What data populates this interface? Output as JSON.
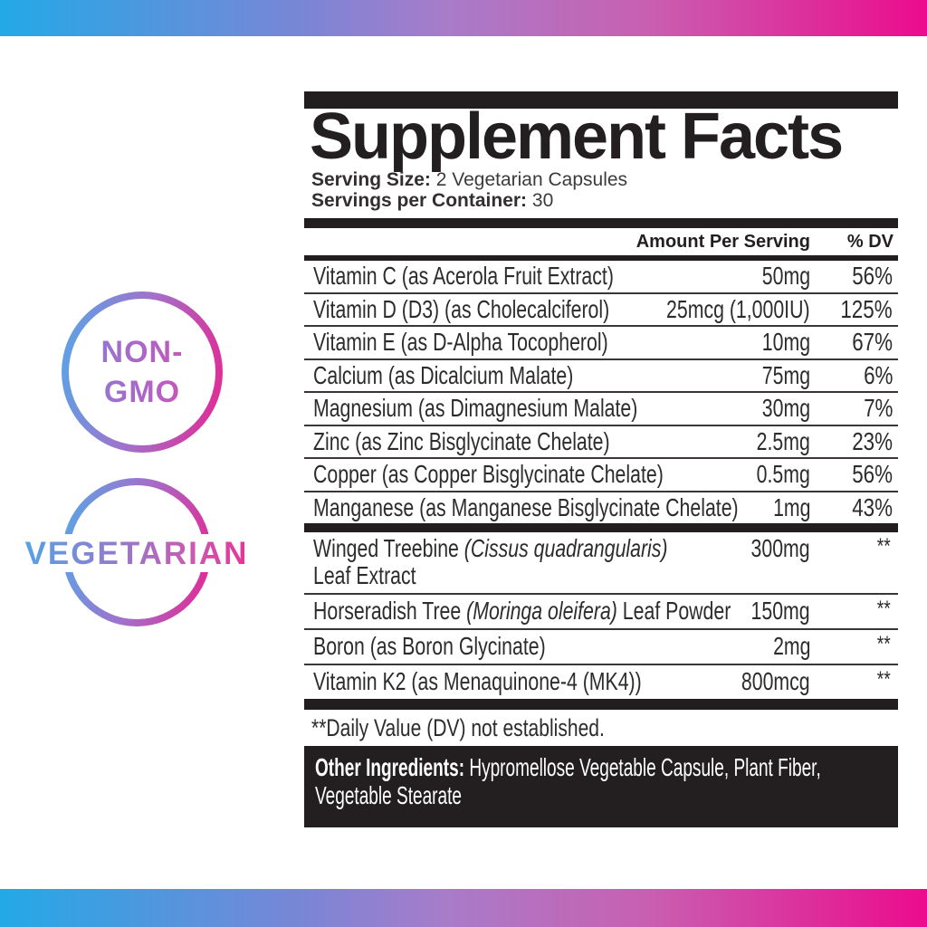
{
  "badges": {
    "non_gmo": {
      "line1": "NON-",
      "line2": "GMO"
    },
    "vegetarian": {
      "label": "VEGETARIAN"
    }
  },
  "panel": {
    "title": "Supplement Facts",
    "serving_size_label": "Serving Size:",
    "serving_size_value": "2 Vegetarian Capsules",
    "servings_label": "Servings per Container:",
    "servings_value": "30",
    "col_amount": "Amount Per Serving",
    "col_dv": "% DV",
    "vitamins": [
      {
        "label": "Vitamin C (as Acerola Fruit Extract)",
        "amount": "50mg",
        "dv": "56%"
      },
      {
        "label": "Vitamin D (D3) (as Cholecalciferol)",
        "amount": "25mcg (1,000IU)",
        "dv": "125%"
      },
      {
        "label": "Vitamin E (as D-Alpha Tocopherol)",
        "amount": "10mg",
        "dv": "67%"
      },
      {
        "label": "Calcium (as Dicalcium Malate)",
        "amount": "75mg",
        "dv": "6%"
      },
      {
        "label": "Magnesium (as Dimagnesium Malate)",
        "amount": "30mg",
        "dv": "7%"
      },
      {
        "label": "Zinc (as Zinc Bisglycinate Chelate)",
        "amount": "2.5mg",
        "dv": "23%"
      },
      {
        "label": "Copper (as Copper Bisglycinate Chelate)",
        "amount": "0.5mg",
        "dv": "56%"
      },
      {
        "label": "Manganese (as Manganese Bisglycinate Chelate)",
        "amount": "1mg",
        "dv": "43%"
      }
    ],
    "botanicals": [
      {
        "pre": "Winged Treebine ",
        "italic": "(Cissus quadrangularis)",
        "post": "",
        "line2": "Leaf Extract",
        "amount": "300mg",
        "dv": "**"
      },
      {
        "pre": "Horseradish Tree ",
        "italic": "(Moringa oleifera)",
        "post": " Leaf Powder",
        "line2": "",
        "amount": "150mg",
        "dv": "**"
      },
      {
        "pre": "Boron (as Boron Glycinate)",
        "italic": "",
        "post": "",
        "line2": "",
        "amount": "2mg",
        "dv": "**"
      },
      {
        "pre": "Vitamin K2 (as Menaquinone-4 (MK4))",
        "italic": "",
        "post": "",
        "line2": "",
        "amount": "800mcg",
        "dv": "**"
      }
    ],
    "footnote": "**Daily Value (DV) not established.",
    "other_ingredients_label": "Other Ingredients:",
    "other_ingredients_value": " Hypromellose Vegetable Capsule, Plant Fiber, Vegetable Stearate"
  },
  "colors": {
    "gradient_blue": "#23A9E6",
    "gradient_purple": "#A36FCA",
    "gradient_pink": "#EC0B8D",
    "label_black": "#221E1F",
    "text_dark": "#2E2B2C",
    "separator": "#3A3637",
    "background": "#FFFFFF"
  }
}
